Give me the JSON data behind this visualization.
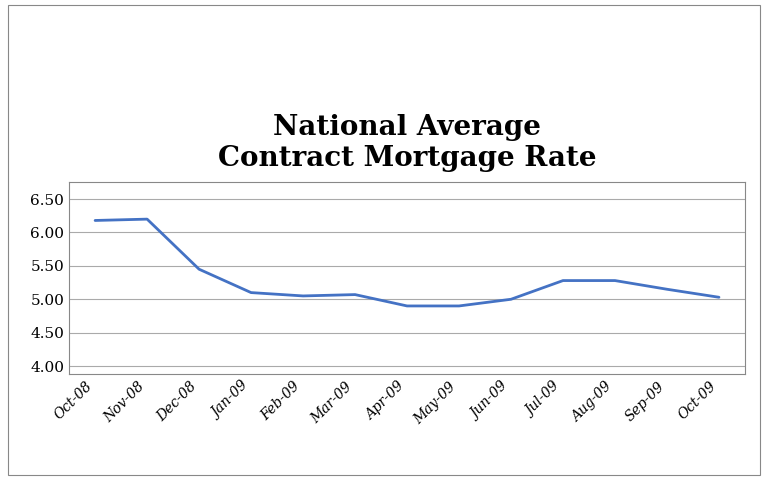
{
  "title": "National Average\nContract Mortgage Rate",
  "x_labels": [
    "Oct-08",
    "Nov-08",
    "Dec-08",
    "Jan-09",
    "Feb-09",
    "Mar-09",
    "Apr-09",
    "May-09",
    "Jun-09",
    "Jul-09",
    "Aug-09",
    "Sep-09",
    "Oct-09"
  ],
  "y_values": [
    6.18,
    6.2,
    5.45,
    5.1,
    5.05,
    5.07,
    4.9,
    4.9,
    5.0,
    5.28,
    5.28,
    5.15,
    5.03
  ],
  "ylim": [
    3.875,
    6.75
  ],
  "yticks": [
    4.0,
    4.5,
    5.0,
    5.5,
    6.0,
    6.5
  ],
  "line_color": "#4472C4",
  "line_width": 2.0,
  "background_color": "#ffffff",
  "grid_color": "#aaaaaa",
  "title_fontsize": 20,
  "tick_fontsize": 11,
  "xlabel_fontsize": 10,
  "title_fontweight": "bold"
}
